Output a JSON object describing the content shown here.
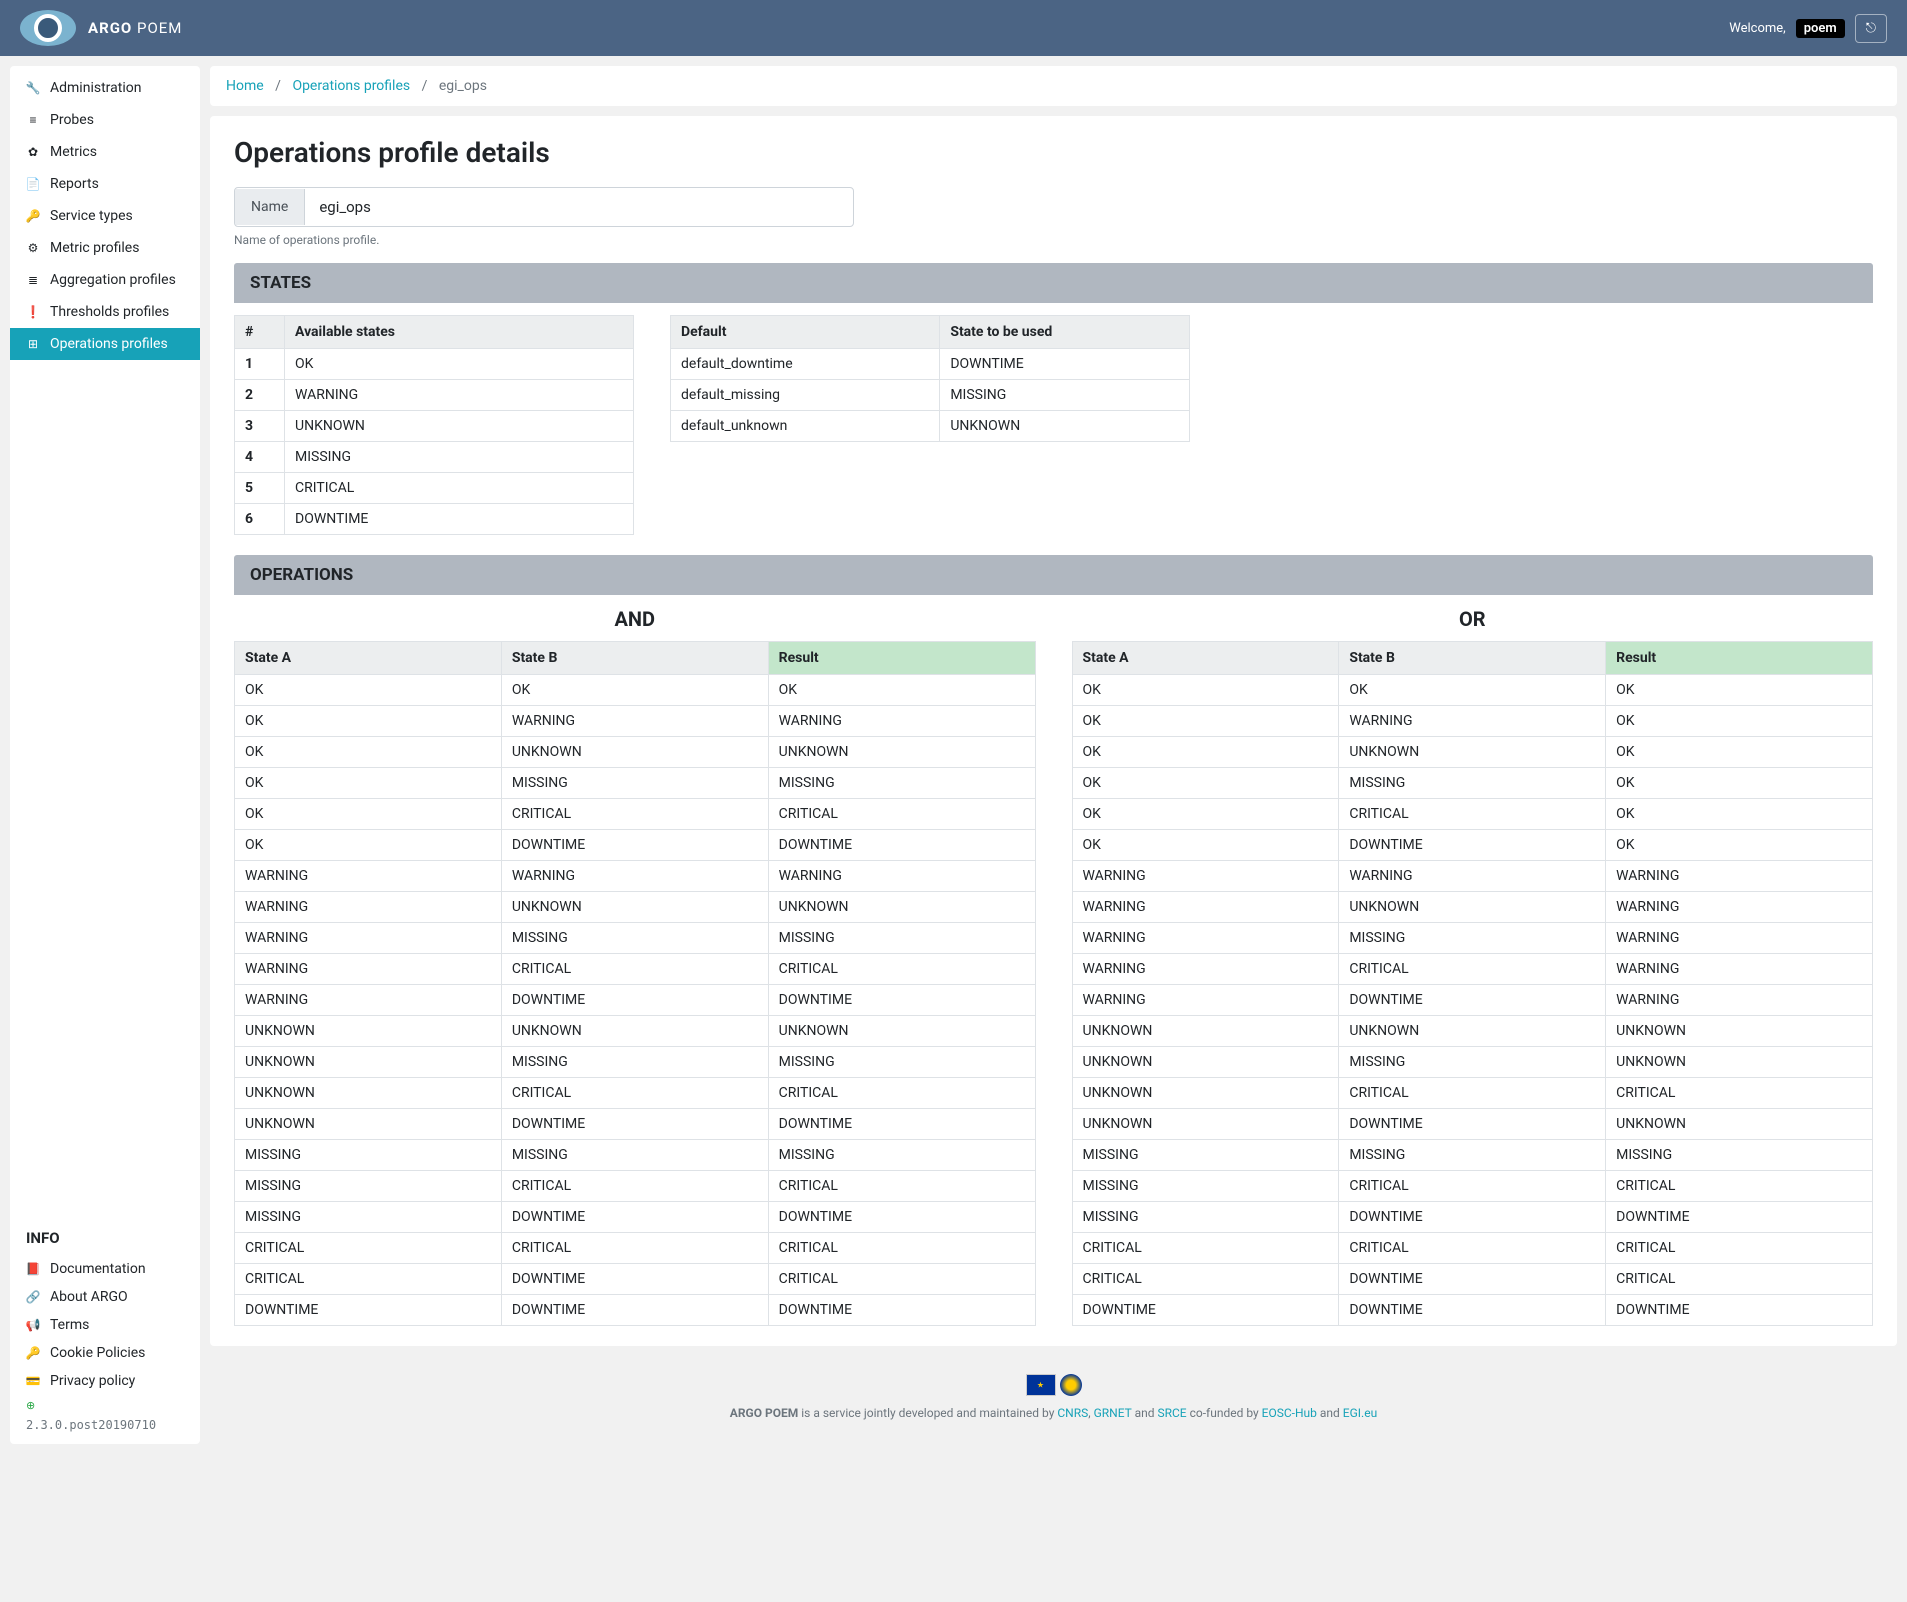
{
  "colors": {
    "header": "#4b6484",
    "accent": "#17a2b8",
    "section": "#b0b7c0",
    "result_bg": "#c3e6cb"
  },
  "header": {
    "brand_bold": "ARGO",
    "brand_light": "POEM",
    "welcome": "Welcome,",
    "user": "poem"
  },
  "sidebar": {
    "items": [
      {
        "icon": "🔧",
        "label": "Administration"
      },
      {
        "icon": "≡",
        "label": "Probes"
      },
      {
        "icon": "✿",
        "label": "Metrics"
      },
      {
        "icon": "📄",
        "label": "Reports"
      },
      {
        "icon": "🔑",
        "label": "Service types"
      },
      {
        "icon": "⚙",
        "label": "Metric profiles"
      },
      {
        "icon": "≣",
        "label": "Aggregation profiles"
      },
      {
        "icon": "❗",
        "label": "Thresholds profiles"
      },
      {
        "icon": "⊞",
        "label": "Operations profiles",
        "active": true
      }
    ],
    "info_title": "INFO",
    "info_links": [
      {
        "icon": "📕",
        "label": "Documentation"
      },
      {
        "icon": "🔗",
        "label": "About ARGO"
      },
      {
        "icon": "📢",
        "label": "Terms"
      },
      {
        "icon": "🔑",
        "label": "Cookie Policies"
      },
      {
        "icon": "💳",
        "label": "Privacy policy"
      }
    ],
    "version": "2.3.0.post20190710"
  },
  "breadcrumb": {
    "home": "Home",
    "mid": "Operations profiles",
    "current": "egi_ops"
  },
  "page": {
    "title": "Operations profile details",
    "name_label": "Name",
    "name_value": "egi_ops",
    "helper": "Name of operations profile.",
    "states_header": "STATES",
    "ops_header": "OPERATIONS"
  },
  "states_table": {
    "col_idx": "#",
    "col_state": "Available states",
    "rows": [
      [
        "1",
        "OK"
      ],
      [
        "2",
        "WARNING"
      ],
      [
        "3",
        "UNKNOWN"
      ],
      [
        "4",
        "MISSING"
      ],
      [
        "5",
        "CRITICAL"
      ],
      [
        "6",
        "DOWNTIME"
      ]
    ]
  },
  "defaults_table": {
    "col_default": "Default",
    "col_state": "State to be used",
    "rows": [
      [
        "default_downtime",
        "DOWNTIME"
      ],
      [
        "default_missing",
        "MISSING"
      ],
      [
        "default_unknown",
        "UNKNOWN"
      ]
    ]
  },
  "ops": {
    "col_a": "State A",
    "col_b": "State B",
    "col_r": "Result",
    "tables": [
      {
        "title": "AND",
        "rows": [
          [
            "OK",
            "OK",
            "OK"
          ],
          [
            "OK",
            "WARNING",
            "WARNING"
          ],
          [
            "OK",
            "UNKNOWN",
            "UNKNOWN"
          ],
          [
            "OK",
            "MISSING",
            "MISSING"
          ],
          [
            "OK",
            "CRITICAL",
            "CRITICAL"
          ],
          [
            "OK",
            "DOWNTIME",
            "DOWNTIME"
          ],
          [
            "WARNING",
            "WARNING",
            "WARNING"
          ],
          [
            "WARNING",
            "UNKNOWN",
            "UNKNOWN"
          ],
          [
            "WARNING",
            "MISSING",
            "MISSING"
          ],
          [
            "WARNING",
            "CRITICAL",
            "CRITICAL"
          ],
          [
            "WARNING",
            "DOWNTIME",
            "DOWNTIME"
          ],
          [
            "UNKNOWN",
            "UNKNOWN",
            "UNKNOWN"
          ],
          [
            "UNKNOWN",
            "MISSING",
            "MISSING"
          ],
          [
            "UNKNOWN",
            "CRITICAL",
            "CRITICAL"
          ],
          [
            "UNKNOWN",
            "DOWNTIME",
            "DOWNTIME"
          ],
          [
            "MISSING",
            "MISSING",
            "MISSING"
          ],
          [
            "MISSING",
            "CRITICAL",
            "CRITICAL"
          ],
          [
            "MISSING",
            "DOWNTIME",
            "DOWNTIME"
          ],
          [
            "CRITICAL",
            "CRITICAL",
            "CRITICAL"
          ],
          [
            "CRITICAL",
            "DOWNTIME",
            "CRITICAL"
          ],
          [
            "DOWNTIME",
            "DOWNTIME",
            "DOWNTIME"
          ]
        ]
      },
      {
        "title": "OR",
        "rows": [
          [
            "OK",
            "OK",
            "OK"
          ],
          [
            "OK",
            "WARNING",
            "OK"
          ],
          [
            "OK",
            "UNKNOWN",
            "OK"
          ],
          [
            "OK",
            "MISSING",
            "OK"
          ],
          [
            "OK",
            "CRITICAL",
            "OK"
          ],
          [
            "OK",
            "DOWNTIME",
            "OK"
          ],
          [
            "WARNING",
            "WARNING",
            "WARNING"
          ],
          [
            "WARNING",
            "UNKNOWN",
            "WARNING"
          ],
          [
            "WARNING",
            "MISSING",
            "WARNING"
          ],
          [
            "WARNING",
            "CRITICAL",
            "WARNING"
          ],
          [
            "WARNING",
            "DOWNTIME",
            "WARNING"
          ],
          [
            "UNKNOWN",
            "UNKNOWN",
            "UNKNOWN"
          ],
          [
            "UNKNOWN",
            "MISSING",
            "UNKNOWN"
          ],
          [
            "UNKNOWN",
            "CRITICAL",
            "CRITICAL"
          ],
          [
            "UNKNOWN",
            "DOWNTIME",
            "UNKNOWN"
          ],
          [
            "MISSING",
            "MISSING",
            "MISSING"
          ],
          [
            "MISSING",
            "CRITICAL",
            "CRITICAL"
          ],
          [
            "MISSING",
            "DOWNTIME",
            "DOWNTIME"
          ],
          [
            "CRITICAL",
            "CRITICAL",
            "CRITICAL"
          ],
          [
            "CRITICAL",
            "DOWNTIME",
            "CRITICAL"
          ],
          [
            "DOWNTIME",
            "DOWNTIME",
            "DOWNTIME"
          ]
        ]
      }
    ]
  },
  "footer": {
    "text1": "ARGO POEM",
    "text2": " is a service jointly developed and maintained by ",
    "cnrs": "CNRS",
    "grnet": "GRNET",
    "srce": "SRCE",
    "text3": " co-funded by ",
    "eosc": "EOSC-Hub",
    "text4": " and ",
    "egi": "EGI.eu",
    "and": " and ",
    "comma": ", "
  }
}
